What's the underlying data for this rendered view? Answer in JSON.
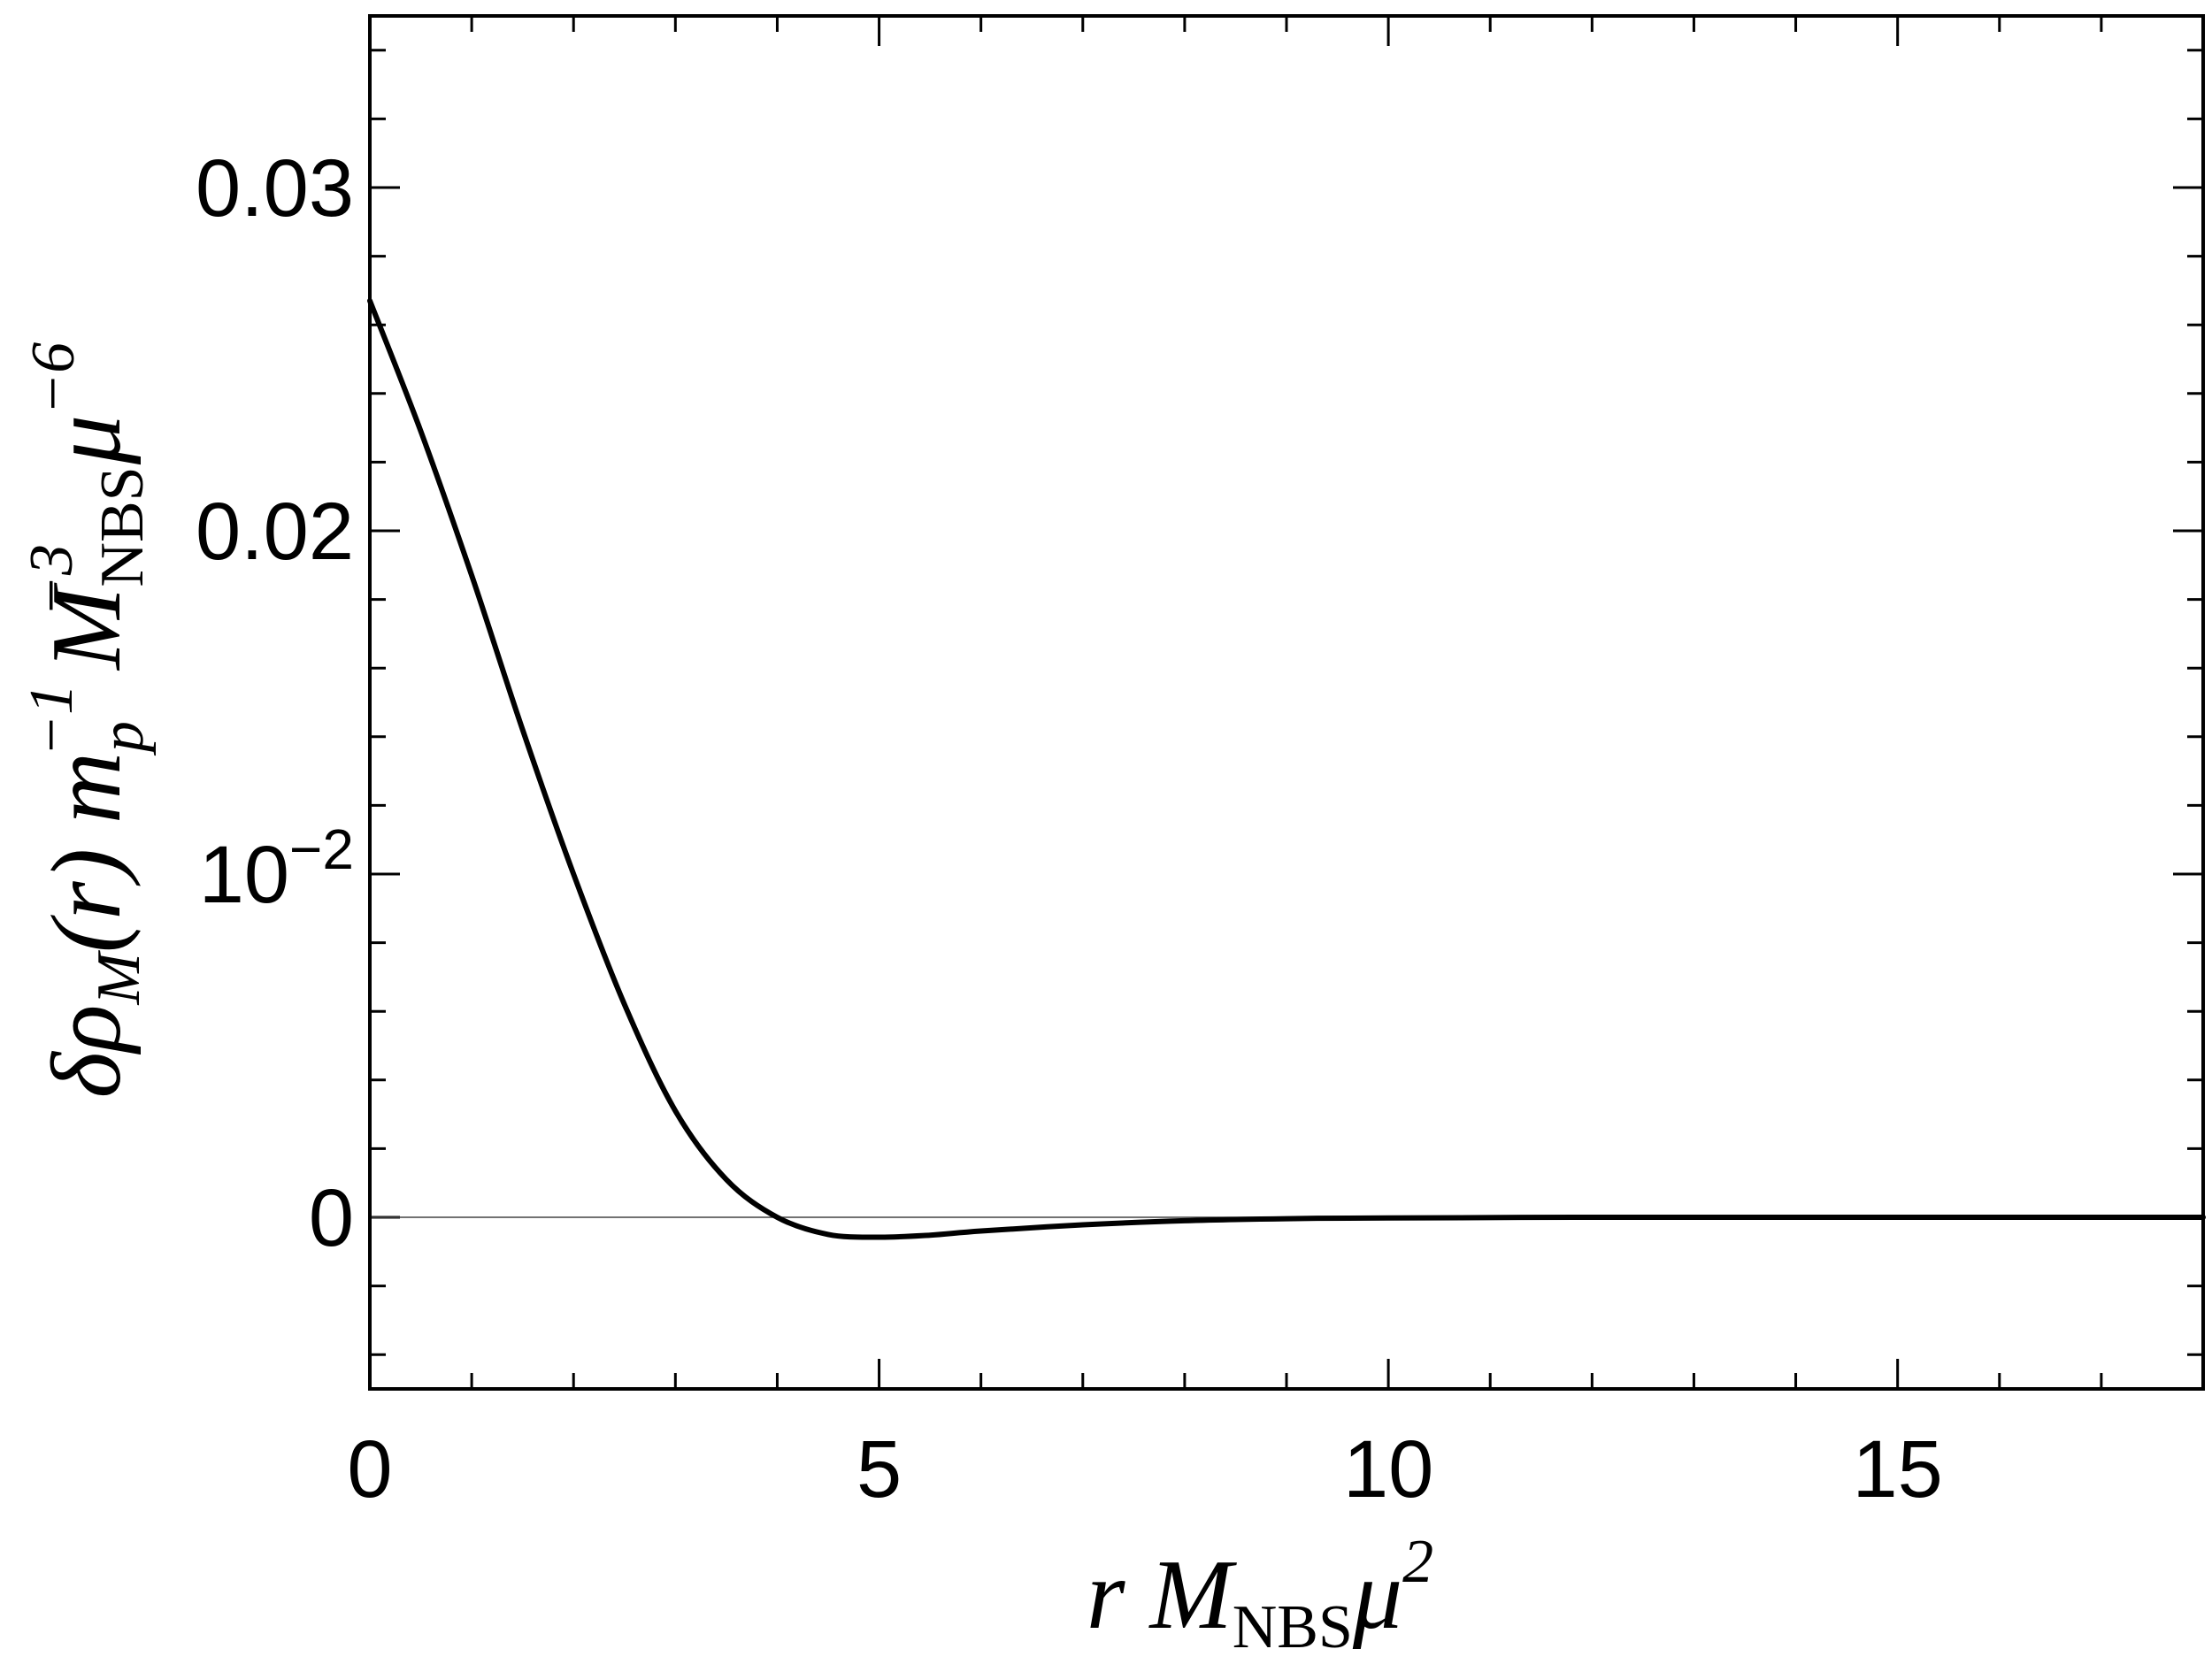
{
  "chart_data": {
    "type": "line",
    "title": "",
    "xlabel": {
      "base": "r M",
      "sub": "NBS",
      "tail": "μ",
      "sup": "2"
    },
    "ylabel": {
      "part1": "δρ",
      "sub1": "M",
      "part2": "(r) m",
      "sub2": "p",
      "sup2": "−1",
      "part3": "M",
      "sub3": "NBS",
      "sup3": "−3",
      "part4": "μ",
      "sup4": "−6"
    },
    "xlim": [
      0,
      18
    ],
    "ylim": [
      -0.005,
      0.035
    ],
    "x_ticks": [
      {
        "value": 0,
        "label": "0"
      },
      {
        "value": 5,
        "label": "5"
      },
      {
        "value": 10,
        "label": "10"
      },
      {
        "value": 15,
        "label": "15"
      }
    ],
    "y_ticks": [
      {
        "value": 0,
        "label": "0"
      },
      {
        "value": 0.01,
        "label": "10",
        "sup": "−2"
      },
      {
        "value": 0.02,
        "label": "0.02"
      },
      {
        "value": 0.03,
        "label": "0.03"
      }
    ],
    "grid": false,
    "legend": "none",
    "baseline": 0,
    "series": [
      {
        "color": "#000000",
        "x": [
          0,
          0.5,
          1.0,
          1.5,
          2.0,
          2.5,
          3.0,
          3.5,
          4.0,
          4.5,
          5.0,
          5.5,
          6.0,
          7.0,
          8.0,
          9.0,
          10.0,
          12.0,
          14.0,
          16.0,
          18.0
        ],
        "y": [
          0.0267,
          0.0229,
          0.0187,
          0.0142,
          0.01,
          0.0062,
          0.0031,
          0.0011,
          0.0,
          -0.0005,
          -0.00058,
          -0.00052,
          -0.0004,
          -0.00022,
          -0.0001,
          -4e-05,
          -2e-05,
          0.0,
          0.0,
          0.0,
          0.0
        ]
      }
    ]
  }
}
